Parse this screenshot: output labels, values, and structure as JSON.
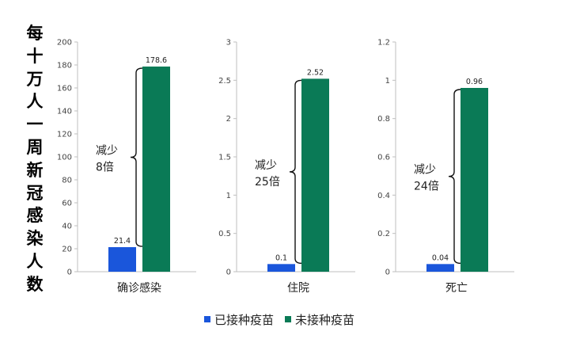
{
  "ylabel": "每十万人一周新冠感染人数",
  "colors": {
    "vaccinated": "#1a56db",
    "unvaccinated": "#0a7a56"
  },
  "legend": [
    {
      "label": "已接种疫苗",
      "color_key": "vaccinated"
    },
    {
      "label": "未接种疫苗",
      "color_key": "unvaccinated"
    }
  ],
  "chart_data": [
    {
      "type": "bar",
      "category": "确诊感染",
      "categories": [
        "已接种疫苗",
        "未接种疫苗"
      ],
      "values": [
        21.4,
        178.6
      ],
      "value_labels": [
        "21.4",
        "178.6"
      ],
      "ylim": [
        0,
        200
      ],
      "yticks": [
        0,
        20,
        40,
        60,
        80,
        100,
        120,
        140,
        160,
        180,
        200
      ],
      "ytick_labels": [
        "0",
        "20",
        "40",
        "60",
        "80",
        "100",
        "120",
        "140",
        "160",
        "180",
        "200"
      ],
      "annotation": [
        "减少",
        "8倍"
      ]
    },
    {
      "type": "bar",
      "category": "住院",
      "categories": [
        "已接种疫苗",
        "未接种疫苗"
      ],
      "values": [
        0.1,
        2.52
      ],
      "value_labels": [
        "0.1",
        "2.52"
      ],
      "ylim": [
        0,
        3
      ],
      "yticks": [
        0,
        0.5,
        1,
        1.5,
        2,
        2.5,
        3
      ],
      "ytick_labels": [
        "0",
        "0.5",
        "1",
        "1.5",
        "2",
        "2.5",
        "3"
      ],
      "annotation": [
        "减少",
        "25倍"
      ]
    },
    {
      "type": "bar",
      "category": "死亡",
      "categories": [
        "已接种疫苗",
        "未接种疫苗"
      ],
      "values": [
        0.04,
        0.96
      ],
      "value_labels": [
        "0.04",
        "0.96"
      ],
      "ylim": [
        0,
        1.2
      ],
      "yticks": [
        0,
        0.2,
        0.4,
        0.6,
        0.8,
        1,
        1.2
      ],
      "ytick_labels": [
        "0",
        "0.2",
        "0.4",
        "0.6",
        "0.8",
        "1",
        "1.2"
      ],
      "annotation": [
        "减少",
        "24倍"
      ]
    }
  ]
}
